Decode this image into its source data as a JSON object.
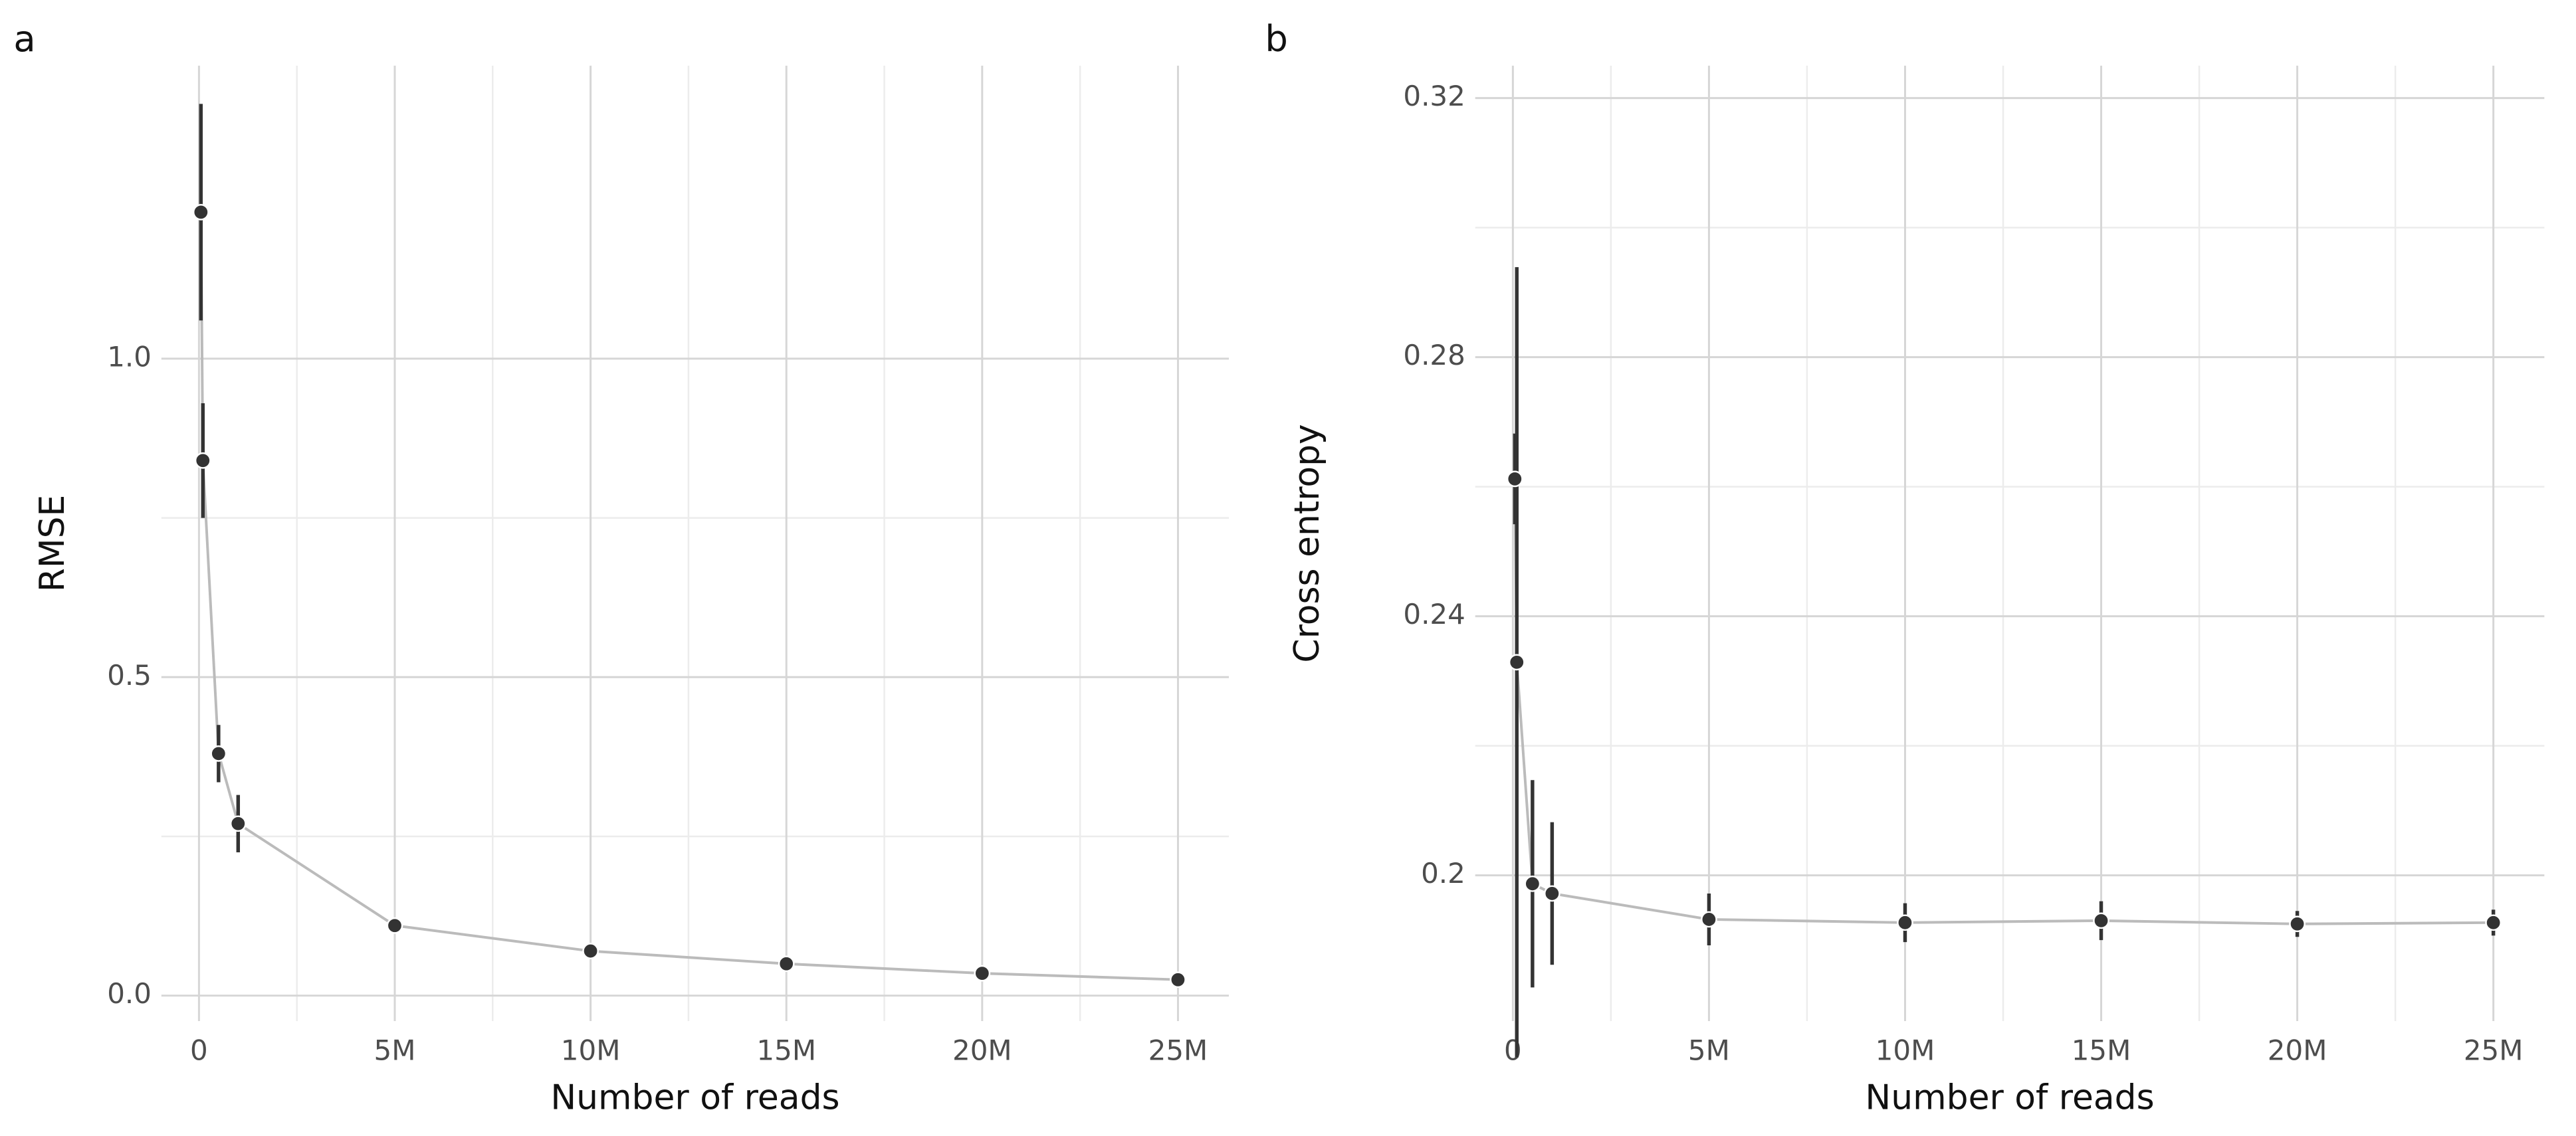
{
  "chart_data": [
    {
      "type": "line",
      "panel_label": "a",
      "xlabel": "Number of reads",
      "ylabel": "RMSE",
      "x": [
        50000,
        100000,
        500000,
        1000000,
        5000000,
        10000000,
        15000000,
        20000000,
        25000000
      ],
      "values": [
        1.23,
        0.84,
        0.38,
        0.27,
        0.11,
        0.07,
        0.05,
        0.035,
        0.025
      ],
      "errors": [
        0.17,
        0.09,
        0.045,
        0.045,
        0.008,
        0.006,
        0.005,
        0.004,
        0.004
      ],
      "color": "#bbbbbb",
      "point_color": "#333333",
      "xlim": [
        -960000,
        26300000
      ],
      "ylim": [
        -0.04,
        1.46
      ],
      "xticks": [
        0,
        {
          "value": 5000000,
          "label": "5M"
        },
        {
          "value": 10000000,
          "label": "10M"
        },
        {
          "value": 15000000,
          "label": "15M"
        },
        {
          "value": 20000000,
          "label": "20M"
        },
        {
          "value": 25000000,
          "label": "25M"
        }
      ],
      "yticks": [
        {
          "value": 0,
          "label": "0.0"
        },
        0.5,
        {
          "value": 1,
          "label": "1.0"
        }
      ],
      "grid": true
    },
    {
      "type": "line",
      "panel_label": "b",
      "xlabel": "Number of reads",
      "ylabel": "Cross entropy",
      "x": [
        50000,
        100000,
        500000,
        1000000,
        5000000,
        10000000,
        15000000,
        20000000,
        25000000
      ],
      "values": [
        0.2612,
        0.2329,
        0.1987,
        0.1972,
        0.1932,
        0.1927,
        0.193,
        0.1925,
        0.1927
      ],
      "errors": [
        0.007,
        0.061,
        0.016,
        0.011,
        0.004,
        0.003,
        0.003,
        0.002,
        0.002
      ],
      "color": "#bbbbbb",
      "point_color": "#333333",
      "xlim": [
        -960000,
        26300000
      ],
      "ylim": [
        0.1775,
        0.325
      ],
      "xticks": [
        0,
        {
          "value": 5000000,
          "label": "5M"
        },
        {
          "value": 10000000,
          "label": "10M"
        },
        {
          "value": 15000000,
          "label": "15M"
        },
        {
          "value": 20000000,
          "label": "20M"
        },
        {
          "value": 25000000,
          "label": "25M"
        }
      ],
      "yticks": [
        0.2,
        0.24,
        0.28,
        0.32
      ],
      "grid": true
    }
  ]
}
